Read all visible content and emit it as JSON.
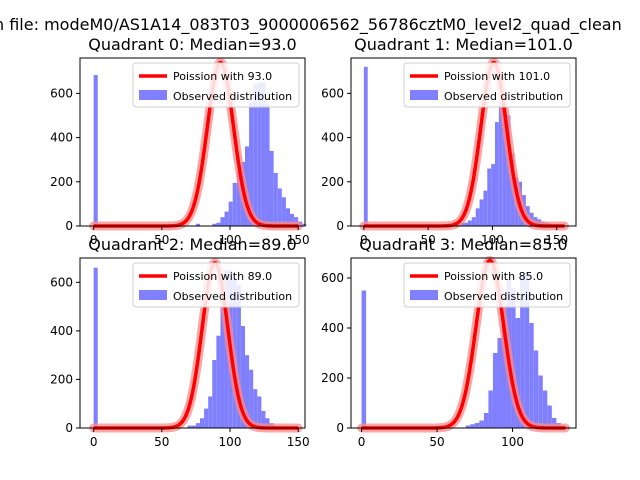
{
  "figure_title": "n file: modeM0/AS1A14_083T03_9000006562_56786cztM0_level2_quad_clean",
  "colors": {
    "hist": "#8080ff",
    "fit": "#ff0000",
    "fit_glow": "#ff8a8a"
  },
  "chart_data": [
    {
      "type": "bar",
      "title": "Quadrant 0: Median=93.0",
      "xlim": [
        -10,
        155
      ],
      "ylim": [
        0,
        760
      ],
      "xticks": [
        0,
        50,
        100,
        150
      ],
      "yticks": [
        0,
        200,
        400,
        600
      ],
      "xlabel": "",
      "ylabel": "",
      "legend": [
        "Poission with 93.0",
        "Observed distribution"
      ],
      "legend_position": "upper-right",
      "median": 93.0,
      "fit_peak": 740,
      "fit_sigma": 9.6,
      "fit_range": [
        0,
        150
      ],
      "bins": {
        "start": 0,
        "width": 3
      },
      "counts": [
        683,
        0,
        0,
        0,
        0,
        0,
        0,
        0,
        0,
        0,
        0,
        0,
        0,
        0,
        0,
        0,
        0,
        0,
        0,
        0,
        0,
        0,
        0,
        0,
        0,
        10,
        0,
        0,
        0,
        10,
        15,
        40,
        65,
        110,
        195,
        250,
        290,
        360,
        560,
        640,
        650,
        650,
        550,
        340,
        240,
        170,
        130,
        80,
        55,
        40,
        20,
        10
      ]
    },
    {
      "type": "bar",
      "title": "Quadrant 1: Median=101.0",
      "xlim": [
        -10,
        165
      ],
      "ylim": [
        0,
        760
      ],
      "xticks": [
        0,
        50,
        100,
        150
      ],
      "yticks": [
        0,
        200,
        400,
        600
      ],
      "xlabel": "",
      "ylabel": "",
      "legend": [
        "Poission with 101.0",
        "Observed distribution"
      ],
      "legend_position": "upper-right",
      "median": 101.0,
      "fit_peak": 740,
      "fit_sigma": 10.0,
      "fit_range": [
        0,
        156
      ],
      "bins": {
        "start": 0,
        "width": 3
      },
      "counts": [
        720,
        0,
        0,
        0,
        0,
        0,
        0,
        0,
        0,
        0,
        0,
        0,
        0,
        0,
        0,
        0,
        0,
        0,
        0,
        0,
        0,
        0,
        0,
        10,
        10,
        15,
        15,
        25,
        40,
        80,
        120,
        160,
        260,
        280,
        470,
        560,
        550,
        500,
        330,
        220,
        200,
        140,
        90,
        60,
        40,
        30,
        20,
        15,
        10,
        5,
        5,
        5
      ]
    },
    {
      "type": "bar",
      "title": "Quadrant 2: Median=89.0",
      "xlim": [
        -10,
        155
      ],
      "ylim": [
        0,
        700
      ],
      "xticks": [
        0,
        50,
        100,
        150
      ],
      "yticks": [
        0,
        200,
        400,
        600
      ],
      "xlabel": "",
      "ylabel": "",
      "legend": [
        "Poission with 89.0",
        "Observed distribution"
      ],
      "legend_position": "upper-right",
      "median": 89.0,
      "fit_peak": 680,
      "fit_sigma": 9.4,
      "fit_range": [
        0,
        150
      ],
      "bins": {
        "start": 0,
        "width": 3
      },
      "counts": [
        660,
        0,
        0,
        0,
        0,
        0,
        0,
        0,
        0,
        0,
        0,
        0,
        0,
        0,
        0,
        0,
        0,
        0,
        0,
        0,
        0,
        0,
        0,
        10,
        10,
        20,
        40,
        80,
        130,
        280,
        380,
        550,
        650,
        650,
        620,
        590,
        420,
        300,
        240,
        160,
        130,
        70,
        40,
        20,
        10,
        5,
        0,
        0,
        0,
        0,
        0
      ]
    },
    {
      "type": "bar",
      "title": "Quadrant 3: Median=85.0",
      "xlim": [
        -7,
        142
      ],
      "ylim": [
        0,
        680
      ],
      "xticks": [
        0,
        50,
        100
      ],
      "yticks": [
        0,
        200,
        400,
        600
      ],
      "xlabel": "",
      "ylabel": "",
      "legend": [
        "Poission with 85.0",
        "Observed distribution"
      ],
      "legend_position": "upper-right",
      "median": 85.0,
      "fit_peak": 670,
      "fit_sigma": 9.2,
      "fit_range": [
        0,
        135
      ],
      "bins": {
        "start": 0,
        "width": 3
      },
      "counts": [
        550,
        0,
        0,
        0,
        0,
        0,
        0,
        0,
        0,
        0,
        0,
        0,
        0,
        0,
        0,
        0,
        0,
        0,
        0,
        0,
        0,
        0,
        0,
        10,
        15,
        20,
        30,
        60,
        150,
        300,
        360,
        490,
        600,
        560,
        440,
        610,
        620,
        420,
        310,
        210,
        150,
        90,
        40,
        20,
        10,
        5
      ]
    }
  ]
}
